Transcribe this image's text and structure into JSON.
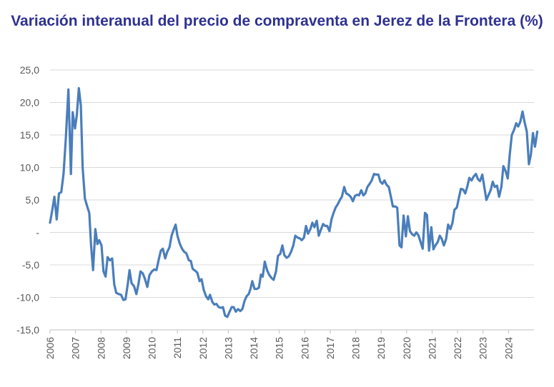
{
  "chart_data": {
    "type": "line",
    "title": "Variación interanual del precio de compraventa en Jerez de la Frontera (%)",
    "xlabel": "",
    "ylabel": "",
    "ylim": [
      -15,
      25
    ],
    "xlim": [
      2006,
      2025
    ],
    "grid": true,
    "legend": "none",
    "y_ticks": [
      "25,0",
      "20,0",
      "15,0",
      "10,0",
      "5,0",
      "-",
      "-5,0",
      "-10,0",
      "-15,0"
    ],
    "y_tick_values": [
      25,
      20,
      15,
      10,
      5,
      0,
      -5,
      -10,
      -15
    ],
    "x_ticks": [
      "2006",
      "2007",
      "2008",
      "2009",
      "2010",
      "2011",
      "2012",
      "2013",
      "2014",
      "2015",
      "2016",
      "2017",
      "2018",
      "2019",
      "2020",
      "2021",
      "2022",
      "2023",
      "2024"
    ],
    "x_tick_values": [
      2006,
      2007,
      2008,
      2009,
      2010,
      2011,
      2012,
      2013,
      2014,
      2015,
      2016,
      2017,
      2018,
      2019,
      2020,
      2021,
      2022,
      2023,
      2024
    ],
    "colors": {
      "line": "#4a7ebb",
      "grid": "#d9d9d9",
      "axis": "#bfbfbf",
      "title": "#2e3192"
    },
    "series": [
      {
        "points": [
          [
            2006.0,
            1.5
          ],
          [
            2006.09,
            3.5
          ],
          [
            2006.17,
            5.5
          ],
          [
            2006.26,
            2.0
          ],
          [
            2006.35,
            6.0
          ],
          [
            2006.44,
            6.2
          ],
          [
            2006.53,
            9.0
          ],
          [
            2006.62,
            14.5
          ],
          [
            2006.72,
            22.0
          ],
          [
            2006.82,
            9.0
          ],
          [
            2006.89,
            18.5
          ],
          [
            2006.98,
            16.0
          ],
          [
            2007.05,
            18.0
          ],
          [
            2007.13,
            22.2
          ],
          [
            2007.21,
            19.5
          ],
          [
            2007.28,
            10.0
          ],
          [
            2007.37,
            5.2
          ],
          [
            2007.46,
            4.0
          ],
          [
            2007.54,
            3.0
          ],
          [
            2007.61,
            -2.0
          ],
          [
            2007.69,
            -5.8
          ],
          [
            2007.78,
            0.5
          ],
          [
            2007.86,
            -1.8
          ],
          [
            2007.93,
            -1.2
          ],
          [
            2008.02,
            -2.0
          ],
          [
            2008.1,
            -6.0
          ],
          [
            2008.18,
            -6.8
          ],
          [
            2008.26,
            -3.8
          ],
          [
            2008.35,
            -4.3
          ],
          [
            2008.44,
            -4.0
          ],
          [
            2008.52,
            -8.0
          ],
          [
            2008.6,
            -9.3
          ],
          [
            2008.7,
            -9.5
          ],
          [
            2008.79,
            -9.6
          ],
          [
            2008.88,
            -10.4
          ],
          [
            2008.96,
            -10.3
          ],
          [
            2009.05,
            -8.0
          ],
          [
            2009.12,
            -5.8
          ],
          [
            2009.2,
            -7.8
          ],
          [
            2009.3,
            -8.3
          ],
          [
            2009.39,
            -9.5
          ],
          [
            2009.47,
            -8.0
          ],
          [
            2009.55,
            -6.0
          ],
          [
            2009.64,
            -6.3
          ],
          [
            2009.73,
            -7.2
          ],
          [
            2009.82,
            -8.4
          ],
          [
            2009.9,
            -6.6
          ],
          [
            2010.0,
            -6.0
          ],
          [
            2010.09,
            -5.7
          ],
          [
            2010.18,
            -5.8
          ],
          [
            2010.26,
            -4.3
          ],
          [
            2010.35,
            -2.8
          ],
          [
            2010.43,
            -2.5
          ],
          [
            2010.52,
            -4.0
          ],
          [
            2010.6,
            -3.0
          ],
          [
            2010.69,
            -2.3
          ],
          [
            2010.77,
            -0.5
          ],
          [
            2010.86,
            0.5
          ],
          [
            2010.93,
            1.2
          ],
          [
            2011.0,
            -0.5
          ],
          [
            2011.09,
            -1.7
          ],
          [
            2011.18,
            -2.5
          ],
          [
            2011.27,
            -3.0
          ],
          [
            2011.35,
            -3.2
          ],
          [
            2011.45,
            -4.3
          ],
          [
            2011.53,
            -4.4
          ],
          [
            2011.6,
            -5.6
          ],
          [
            2011.7,
            -5.9
          ],
          [
            2011.78,
            -6.2
          ],
          [
            2011.87,
            -7.5
          ],
          [
            2011.95,
            -7.2
          ],
          [
            2012.03,
            -8.8
          ],
          [
            2012.12,
            -9.8
          ],
          [
            2012.21,
            -10.3
          ],
          [
            2012.28,
            -9.6
          ],
          [
            2012.37,
            -10.7
          ],
          [
            2012.45,
            -11.1
          ],
          [
            2012.53,
            -11.0
          ],
          [
            2012.62,
            -11.5
          ],
          [
            2012.71,
            -11.6
          ],
          [
            2012.79,
            -11.5
          ],
          [
            2012.87,
            -12.8
          ],
          [
            2012.96,
            -13.0
          ],
          [
            2013.05,
            -12.2
          ],
          [
            2013.13,
            -11.5
          ],
          [
            2013.21,
            -11.5
          ],
          [
            2013.29,
            -12.2
          ],
          [
            2013.38,
            -11.8
          ],
          [
            2013.47,
            -12.1
          ],
          [
            2013.55,
            -11.8
          ],
          [
            2013.64,
            -10.5
          ],
          [
            2013.72,
            -9.8
          ],
          [
            2013.8,
            -9.5
          ],
          [
            2013.87,
            -8.7
          ],
          [
            2013.94,
            -7.5
          ],
          [
            2014.03,
            -8.7
          ],
          [
            2014.12,
            -8.7
          ],
          [
            2014.2,
            -8.5
          ],
          [
            2014.28,
            -6.5
          ],
          [
            2014.35,
            -6.8
          ],
          [
            2014.43,
            -4.5
          ],
          [
            2014.52,
            -5.8
          ],
          [
            2014.6,
            -6.5
          ],
          [
            2014.69,
            -7.0
          ],
          [
            2014.78,
            -7.3
          ],
          [
            2014.87,
            -6.0
          ],
          [
            2014.95,
            -3.6
          ],
          [
            2015.04,
            -3.3
          ],
          [
            2015.12,
            -2.0
          ],
          [
            2015.2,
            -3.5
          ],
          [
            2015.29,
            -3.9
          ],
          [
            2015.37,
            -3.7
          ],
          [
            2015.46,
            -3.0
          ],
          [
            2015.55,
            -2.0
          ],
          [
            2015.63,
            -0.5
          ],
          [
            2015.72,
            -0.8
          ],
          [
            2015.8,
            -0.9
          ],
          [
            2015.88,
            -1.2
          ],
          [
            2015.97,
            -0.8
          ],
          [
            2016.05,
            1.0
          ],
          [
            2016.13,
            -0.2
          ],
          [
            2016.22,
            0.5
          ],
          [
            2016.3,
            1.5
          ],
          [
            2016.38,
            0.8
          ],
          [
            2016.47,
            1.8
          ],
          [
            2016.55,
            -0.5
          ],
          [
            2016.63,
            0.4
          ],
          [
            2016.72,
            1.3
          ],
          [
            2016.8,
            1.0
          ],
          [
            2016.88,
            1.0
          ],
          [
            2016.97,
            0.2
          ],
          [
            2017.05,
            2.0
          ],
          [
            2017.13,
            3.0
          ],
          [
            2017.21,
            3.8
          ],
          [
            2017.29,
            4.3
          ],
          [
            2017.38,
            5.0
          ],
          [
            2017.46,
            5.5
          ],
          [
            2017.55,
            7.0
          ],
          [
            2017.63,
            6.0
          ],
          [
            2017.72,
            5.8
          ],
          [
            2017.8,
            5.5
          ],
          [
            2017.89,
            4.8
          ],
          [
            2017.97,
            5.6
          ],
          [
            2018.05,
            5.8
          ],
          [
            2018.13,
            5.7
          ],
          [
            2018.22,
            6.5
          ],
          [
            2018.3,
            5.7
          ],
          [
            2018.38,
            6.0
          ],
          [
            2018.46,
            7.0
          ],
          [
            2018.55,
            7.5
          ],
          [
            2018.63,
            8.0
          ],
          [
            2018.72,
            9.0
          ],
          [
            2018.8,
            8.9
          ],
          [
            2018.89,
            8.9
          ],
          [
            2018.97,
            7.8
          ],
          [
            2019.05,
            7.5
          ],
          [
            2019.13,
            8.0
          ],
          [
            2019.22,
            7.3
          ],
          [
            2019.3,
            7.0
          ],
          [
            2019.38,
            5.5
          ],
          [
            2019.46,
            4.0
          ],
          [
            2019.55,
            4.0
          ],
          [
            2019.63,
            3.8
          ],
          [
            2019.72,
            -2.0
          ],
          [
            2019.8,
            -2.3
          ],
          [
            2019.88,
            2.6
          ],
          [
            2019.97,
            -0.6
          ],
          [
            2020.05,
            2.5
          ],
          [
            2020.13,
            0.2
          ],
          [
            2020.22,
            -0.3
          ],
          [
            2020.3,
            -0.5
          ],
          [
            2020.38,
            0.0
          ],
          [
            2020.46,
            -0.4
          ],
          [
            2020.55,
            -1.5
          ],
          [
            2020.63,
            -2.5
          ],
          [
            2020.72,
            3.0
          ],
          [
            2020.8,
            2.7
          ],
          [
            2020.88,
            -2.8
          ],
          [
            2020.97,
            0.8
          ],
          [
            2021.05,
            -2.6
          ],
          [
            2021.13,
            -2.0
          ],
          [
            2021.22,
            -1.5
          ],
          [
            2021.3,
            -0.5
          ],
          [
            2021.38,
            -1.0
          ],
          [
            2021.46,
            -2.0
          ],
          [
            2021.55,
            -1.0
          ],
          [
            2021.63,
            1.2
          ],
          [
            2021.72,
            0.5
          ],
          [
            2021.8,
            1.5
          ],
          [
            2021.88,
            3.5
          ],
          [
            2021.97,
            3.8
          ],
          [
            2022.05,
            5.3
          ],
          [
            2022.13,
            6.7
          ],
          [
            2022.22,
            6.6
          ],
          [
            2022.3,
            6.0
          ],
          [
            2022.38,
            7.0
          ],
          [
            2022.46,
            8.4
          ],
          [
            2022.55,
            8.0
          ],
          [
            2022.63,
            8.6
          ],
          [
            2022.72,
            9.0
          ],
          [
            2022.8,
            8.2
          ],
          [
            2022.88,
            7.9
          ],
          [
            2022.97,
            8.9
          ],
          [
            2023.05,
            7.0
          ],
          [
            2023.13,
            5.0
          ],
          [
            2023.22,
            5.8
          ],
          [
            2023.3,
            6.5
          ],
          [
            2023.38,
            7.8
          ],
          [
            2023.46,
            7.0
          ],
          [
            2023.55,
            7.2
          ],
          [
            2023.63,
            5.5
          ],
          [
            2023.72,
            7.0
          ],
          [
            2023.8,
            10.2
          ],
          [
            2023.88,
            9.5
          ],
          [
            2023.97,
            8.3
          ],
          [
            2024.05,
            12.0
          ],
          [
            2024.13,
            15.0
          ],
          [
            2024.22,
            15.8
          ],
          [
            2024.3,
            16.8
          ],
          [
            2024.38,
            16.3
          ],
          [
            2024.46,
            17.0
          ],
          [
            2024.55,
            18.6
          ],
          [
            2024.63,
            17.0
          ],
          [
            2024.72,
            15.5
          ],
          [
            2024.8,
            10.5
          ],
          [
            2024.88,
            12.0
          ],
          [
            2024.96,
            15.3
          ],
          [
            2025.04,
            13.2
          ],
          [
            2025.13,
            15.5
          ]
        ]
      }
    ]
  }
}
